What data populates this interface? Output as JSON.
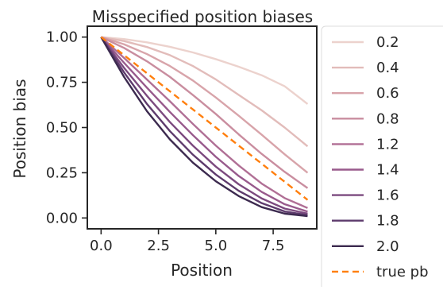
{
  "chart_data": {
    "type": "line",
    "title": "Misspecified position biases",
    "xlabel": "Position",
    "ylabel": "Position bias",
    "xlim": [
      -0.6,
      9.4
    ],
    "ylim": [
      -0.06,
      1.06
    ],
    "xticks": [
      0,
      2.5,
      5,
      7.5
    ],
    "xtick_labels": [
      "0.0",
      "2.5",
      "5.0",
      "7.5"
    ],
    "yticks": [
      0,
      0.25,
      0.5,
      0.75,
      1
    ],
    "ytick_labels": [
      "0.00",
      "0.25",
      "0.50",
      "0.75",
      "1.00"
    ],
    "grid": false,
    "legend_position": "outside-right",
    "x": [
      0,
      1,
      2,
      3,
      4,
      5,
      6,
      7,
      8,
      9
    ],
    "series": [
      {
        "name": "0.2",
        "color": "#ecd2cd",
        "dash": "solid",
        "values": [
          1.0,
          0.989,
          0.971,
          0.946,
          0.915,
          0.878,
          0.836,
          0.789,
          0.728,
          0.63
        ]
      },
      {
        "name": "0.4",
        "color": "#e2bcba",
        "dash": "solid",
        "values": [
          1.0,
          0.978,
          0.945,
          0.9,
          0.84,
          0.766,
          0.68,
          0.595,
          0.5,
          0.396
        ]
      },
      {
        "name": "0.6",
        "color": "#d8a4aa",
        "dash": "solid",
        "values": [
          1.0,
          0.96,
          0.906,
          0.84,
          0.76,
          0.666,
          0.565,
          0.46,
          0.352,
          0.25
        ]
      },
      {
        "name": "0.8",
        "color": "#c98d9f",
        "dash": "solid",
        "values": [
          1.0,
          0.94,
          0.866,
          0.78,
          0.68,
          0.575,
          0.462,
          0.354,
          0.255,
          0.165
        ]
      },
      {
        "name": "1.2",
        "color": "#b06f95",
        "dash": "solid",
        "values": [
          1.0,
          0.885,
          0.765,
          0.645,
          0.52,
          0.4,
          0.29,
          0.19,
          0.11,
          0.055
        ]
      },
      {
        "name": "1.4",
        "color": "#985a8c",
        "dash": "solid",
        "values": [
          1.0,
          0.858,
          0.72,
          0.586,
          0.458,
          0.338,
          0.232,
          0.144,
          0.076,
          0.035
        ]
      },
      {
        "name": "1.6",
        "color": "#7c4a7f",
        "dash": "solid",
        "values": [
          1.0,
          0.83,
          0.675,
          0.53,
          0.4,
          0.284,
          0.186,
          0.108,
          0.052,
          0.024
        ]
      },
      {
        "name": "1.8",
        "color": "#5e3b6d",
        "dash": "solid",
        "values": [
          1.0,
          0.805,
          0.63,
          0.48,
          0.35,
          0.24,
          0.15,
          0.082,
          0.036,
          0.016
        ]
      },
      {
        "name": "2.0",
        "color": "#3c2a4f",
        "dash": "solid",
        "values": [
          1.0,
          0.78,
          0.59,
          0.434,
          0.306,
          0.203,
          0.121,
          0.06,
          0.024,
          0.01
        ]
      },
      {
        "name": "true pb",
        "color": "#ff7f0e",
        "dash": "dashed",
        "values": [
          1.0,
          0.9,
          0.8,
          0.7,
          0.6,
          0.5,
          0.4,
          0.3,
          0.2,
          0.1
        ]
      }
    ]
  }
}
